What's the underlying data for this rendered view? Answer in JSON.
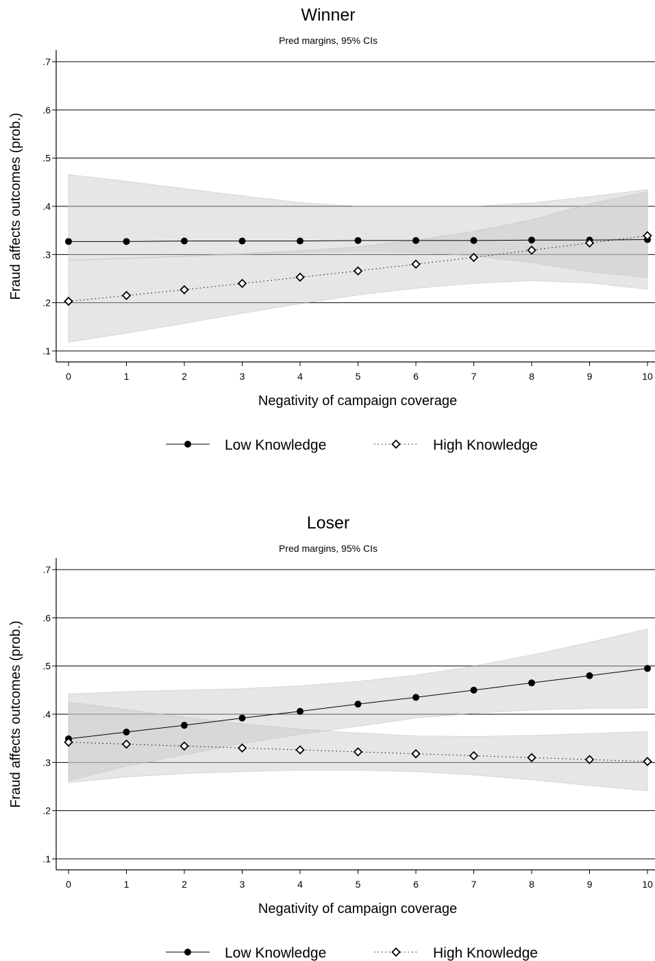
{
  "chart_data": [
    {
      "type": "line",
      "title": "Winner",
      "subtitle": "Pred margins, 95% CIs",
      "xlabel": "Negativity of campaign coverage",
      "ylabel": "Fraud affects outcomes (prob.)",
      "x": [
        0,
        1,
        2,
        3,
        4,
        5,
        6,
        7,
        8,
        9,
        10
      ],
      "xticks": [
        "0",
        "1",
        "2",
        "3",
        "4",
        "5",
        "6",
        "7",
        "8",
        "9",
        "10"
      ],
      "yticks": [
        ".1",
        ".2",
        ".3",
        ".4",
        ".5",
        ".6",
        ".7"
      ],
      "ytick_values": [
        0.1,
        0.2,
        0.3,
        0.4,
        0.5,
        0.6,
        0.7
      ],
      "xlim": [
        0,
        10
      ],
      "ylim": [
        0.075,
        0.72
      ],
      "grid": "horizontal",
      "legend_position": "bottom",
      "series": [
        {
          "name": "Low Knowledge",
          "marker": "filled-circle",
          "line_style": "solid",
          "values": [
            0.327,
            0.327,
            0.328,
            0.328,
            0.328,
            0.329,
            0.329,
            0.329,
            0.33,
            0.33,
            0.331
          ],
          "ci_lower": [
            0.288,
            0.292,
            0.296,
            0.3,
            0.304,
            0.306,
            0.305,
            0.297,
            0.283,
            0.264,
            0.252
          ],
          "ci_upper": [
            0.466,
            0.452,
            0.437,
            0.422,
            0.408,
            0.4,
            0.4,
            0.4,
            0.407,
            0.42,
            0.435
          ]
        },
        {
          "name": "High Knowledge",
          "marker": "hollow-diamond",
          "line_style": "dotted",
          "values": [
            0.203,
            0.215,
            0.227,
            0.24,
            0.253,
            0.266,
            0.28,
            0.294,
            0.309,
            0.324,
            0.339
          ],
          "ci_lower": [
            0.118,
            0.137,
            0.157,
            0.178,
            0.198,
            0.216,
            0.23,
            0.24,
            0.246,
            0.241,
            0.228
          ],
          "ci_upper": [
            0.288,
            0.292,
            0.297,
            0.302,
            0.308,
            0.316,
            0.33,
            0.348,
            0.372,
            0.405,
            0.43
          ]
        }
      ]
    },
    {
      "type": "line",
      "title": "Loser",
      "subtitle": "Pred margins, 95% CIs",
      "xlabel": "Negativity of campaign coverage",
      "ylabel": "Fraud affects outcomes (prob.)",
      "x": [
        0,
        1,
        2,
        3,
        4,
        5,
        6,
        7,
        8,
        9,
        10
      ],
      "xticks": [
        "0",
        "1",
        "2",
        "3",
        "4",
        "5",
        "6",
        "7",
        "8",
        "9",
        "10"
      ],
      "yticks": [
        ".1",
        ".2",
        ".3",
        ".4",
        ".5",
        ".6",
        ".7"
      ],
      "ytick_values": [
        0.1,
        0.2,
        0.3,
        0.4,
        0.5,
        0.6,
        0.7
      ],
      "xlim": [
        0,
        10
      ],
      "ylim": [
        0.075,
        0.72
      ],
      "grid": "horizontal",
      "legend_position": "bottom",
      "series": [
        {
          "name": "Low Knowledge",
          "marker": "filled-circle",
          "line_style": "solid",
          "values": [
            0.349,
            0.363,
            0.377,
            0.392,
            0.406,
            0.421,
            0.435,
            0.45,
            0.465,
            0.48,
            0.495
          ],
          "ci_lower": [
            0.262,
            0.292,
            0.316,
            0.339,
            0.358,
            0.375,
            0.392,
            0.402,
            0.409,
            0.412,
            0.413
          ],
          "ci_upper": [
            0.442,
            0.447,
            0.45,
            0.453,
            0.459,
            0.468,
            0.481,
            0.5,
            0.523,
            0.549,
            0.577
          ]
        },
        {
          "name": "High Knowledge",
          "marker": "hollow-diamond",
          "line_style": "dotted",
          "values": [
            0.342,
            0.338,
            0.334,
            0.33,
            0.326,
            0.322,
            0.318,
            0.314,
            0.31,
            0.306,
            0.302
          ],
          "ci_lower": [
            0.258,
            0.27,
            0.277,
            0.281,
            0.284,
            0.284,
            0.281,
            0.274,
            0.264,
            0.252,
            0.241
          ],
          "ci_upper": [
            0.425,
            0.41,
            0.394,
            0.38,
            0.369,
            0.361,
            0.355,
            0.354,
            0.356,
            0.36,
            0.364
          ]
        }
      ]
    }
  ]
}
